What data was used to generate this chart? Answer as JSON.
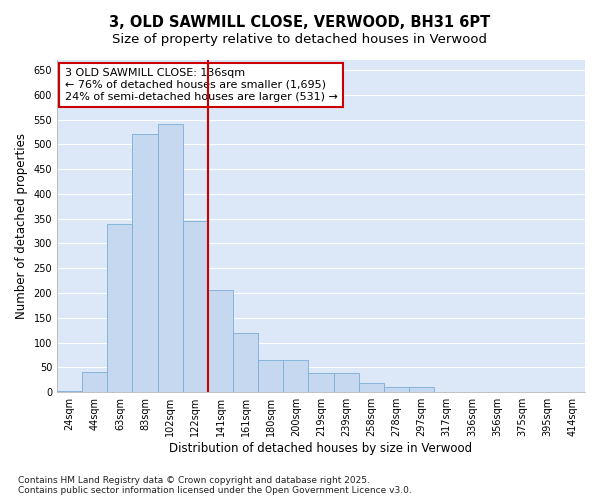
{
  "title": "3, OLD SAWMILL CLOSE, VERWOOD, BH31 6PT",
  "subtitle": "Size of property relative to detached houses in Verwood",
  "xlabel": "Distribution of detached houses by size in Verwood",
  "ylabel": "Number of detached properties",
  "categories": [
    "24sqm",
    "44sqm",
    "63sqm",
    "83sqm",
    "102sqm",
    "122sqm",
    "141sqm",
    "161sqm",
    "180sqm",
    "200sqm",
    "219sqm",
    "239sqm",
    "258sqm",
    "278sqm",
    "297sqm",
    "317sqm",
    "336sqm",
    "356sqm",
    "375sqm",
    "395sqm",
    "414sqm"
  ],
  "values": [
    2,
    40,
    340,
    520,
    540,
    345,
    207,
    120,
    65,
    65,
    38,
    38,
    18,
    10,
    10,
    0,
    0,
    0,
    0,
    0,
    0
  ],
  "bar_color": "#c5d8f0",
  "bar_edge_color": "#7aaed6",
  "vline_color": "#cc0000",
  "annotation_title": "3 OLD SAWMILL CLOSE: 136sqm",
  "annotation_line1": "← 76% of detached houses are smaller (1,695)",
  "annotation_line2": "24% of semi-detached houses are larger (531) →",
  "annotation_box_color": "#ffffff",
  "annotation_box_edge": "#cc0000",
  "ylim": [
    0,
    670
  ],
  "yticks": [
    0,
    50,
    100,
    150,
    200,
    250,
    300,
    350,
    400,
    450,
    500,
    550,
    600,
    650
  ],
  "plot_bg": "#dce8f8",
  "fig_bg": "#ffffff",
  "grid_color": "#ffffff",
  "footer": "Contains HM Land Registry data © Crown copyright and database right 2025.\nContains public sector information licensed under the Open Government Licence v3.0.",
  "title_fontsize": 10.5,
  "subtitle_fontsize": 9.5,
  "tick_fontsize": 7,
  "ylabel_fontsize": 8.5,
  "xlabel_fontsize": 8.5,
  "footer_fontsize": 6.5,
  "ann_fontsize": 8,
  "vline_x_idx": 5.5
}
